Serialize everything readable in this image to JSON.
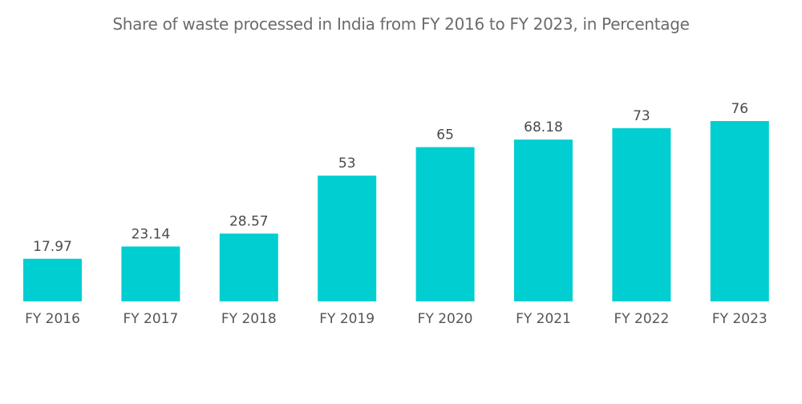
{
  "chart_data": {
    "type": "bar",
    "title": "Share of waste processed in India from FY 2016 to FY 2023, in Percentage",
    "categories": [
      "FY 2016",
      "FY 2017",
      "FY 2018",
      "FY 2019",
      "FY 2020",
      "FY 2021",
      "FY 2022",
      "FY 2023"
    ],
    "values": [
      17.97,
      23.14,
      28.57,
      53,
      65,
      68.18,
      73,
      76
    ],
    "value_labels": [
      "17.97",
      "23.14",
      "28.57",
      "53",
      "65",
      "68.18",
      "73",
      "76"
    ],
    "xlabel": "",
    "ylabel": "",
    "ylim": [
      0,
      76
    ],
    "grid": false,
    "legend": "none",
    "bar_color": "#00CED1"
  }
}
